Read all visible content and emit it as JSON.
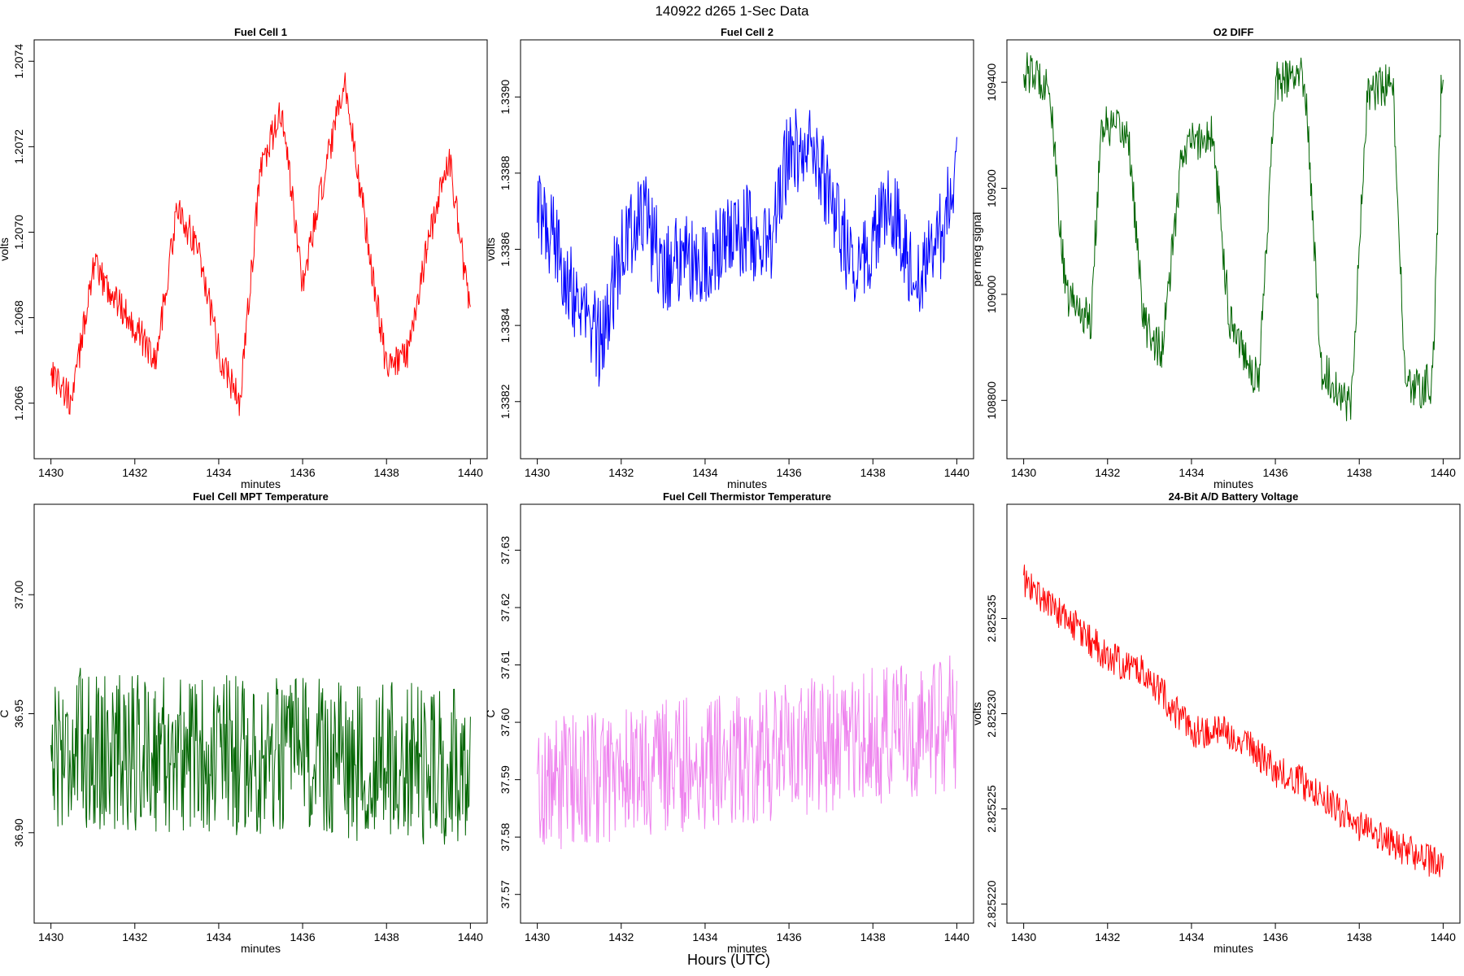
{
  "figure": {
    "title": "140922   d265   1-Sec Data",
    "xlabel": "Hours (UTC)"
  },
  "chart_data": [
    {
      "type": "line",
      "title": "Fuel Cell 1",
      "xlabel": "minutes",
      "ylabel": "volts",
      "color": "#ff0000",
      "xlim": [
        1429.6,
        1440.4
      ],
      "ylim": [
        1.20647,
        1.20745
      ],
      "xticks": [
        1430,
        1432,
        1434,
        1436,
        1438,
        1440
      ],
      "yticks": [
        1.2066,
        1.2068,
        1.207,
        1.2072,
        1.2074
      ],
      "ytick_labels": [
        "1.2066",
        "1.2068",
        "1.2070",
        "1.2072",
        "1.2074"
      ],
      "x": [
        1430.0,
        1430.5,
        1431.0,
        1431.5,
        1432.0,
        1432.5,
        1433.0,
        1433.5,
        1434.0,
        1434.5,
        1435.0,
        1435.5,
        1436.0,
        1436.5,
        1437.0,
        1437.5,
        1438.0,
        1438.5,
        1439.0,
        1439.5,
        1440.0
      ],
      "y": [
        1.20668,
        1.2066,
        1.20692,
        1.20685,
        1.20678,
        1.2067,
        1.20705,
        1.20697,
        1.20672,
        1.2066,
        1.20715,
        1.20728,
        1.20688,
        1.20712,
        1.20735,
        1.20702,
        1.20668,
        1.20672,
        1.20698,
        1.20718,
        1.2068
      ],
      "noise_amplitude": 4e-05,
      "samples": 600
    },
    {
      "type": "line",
      "title": "Fuel Cell 2",
      "xlabel": "minutes",
      "ylabel": "volts",
      "color": "#0000ff",
      "xlim": [
        1429.6,
        1440.4
      ],
      "ylim": [
        1.33805,
        1.33915
      ],
      "xticks": [
        1430,
        1432,
        1434,
        1436,
        1438,
        1440
      ],
      "yticks": [
        1.3382,
        1.3384,
        1.3386,
        1.3388,
        1.339
      ],
      "ytick_labels": [
        "1.3382",
        "1.3384",
        "1.3386",
        "1.3388",
        "1.3390"
      ],
      "x": [
        1430.0,
        1430.5,
        1431.0,
        1431.5,
        1432.0,
        1432.5,
        1433.0,
        1433.5,
        1434.0,
        1434.5,
        1435.0,
        1435.5,
        1436.0,
        1436.5,
        1437.0,
        1437.5,
        1438.0,
        1438.5,
        1439.0,
        1439.5,
        1440.0
      ],
      "y": [
        1.3387,
        1.3386,
        1.33845,
        1.33835,
        1.3386,
        1.3387,
        1.33855,
        1.33858,
        1.33855,
        1.33862,
        1.33865,
        1.3386,
        1.33885,
        1.33888,
        1.33875,
        1.33855,
        1.33862,
        1.33872,
        1.33852,
        1.33858,
        1.33882
      ],
      "noise_amplitude": 0.00012,
      "samples": 600
    },
    {
      "type": "line",
      "title": "O2 DIFF",
      "xlabel": "minutes",
      "ylabel": "per meg signal",
      "color": "#006400",
      "xlim": [
        1429.6,
        1440.4
      ],
      "ylim": [
        108690,
        109480
      ],
      "xticks": [
        1430,
        1432,
        1434,
        1436,
        1438,
        1440
      ],
      "yticks": [
        108800,
        109000,
        109200,
        109400
      ],
      "ytick_labels": [
        "108800",
        "109000",
        "109200",
        "109400"
      ],
      "x": [
        1430.0,
        1430.6,
        1431.0,
        1431.6,
        1431.85,
        1432.5,
        1432.85,
        1433.3,
        1433.8,
        1434.5,
        1434.9,
        1435.6,
        1436.0,
        1436.7,
        1437.1,
        1437.8,
        1438.2,
        1438.8,
        1439.1,
        1439.75,
        1439.95
      ],
      "y": [
        109420,
        109400,
        109000,
        108950,
        109320,
        109300,
        108950,
        108890,
        109280,
        109300,
        108960,
        108830,
        109400,
        109410,
        108860,
        108790,
        109380,
        109400,
        108820,
        108830,
        109380
      ],
      "noise_amplitude": 40,
      "samples": 600
    },
    {
      "type": "line",
      "title": "Fuel Cell MPT Temperature",
      "xlabel": "minutes",
      "ylabel": "C",
      "color": "#006400",
      "xlim": [
        1429.6,
        1440.4
      ],
      "ylim": [
        36.862,
        37.038
      ],
      "xticks": [
        1430,
        1432,
        1434,
        1436,
        1438,
        1440
      ],
      "yticks": [
        36.9,
        36.95,
        37.0
      ],
      "ytick_labels": [
        "36.90",
        "36.95",
        "37.00"
      ],
      "x": [
        1430.0,
        1435.0,
        1440.0
      ],
      "y": [
        36.936,
        36.932,
        36.928
      ],
      "noise_amplitude": 0.034,
      "samples": 600
    },
    {
      "type": "line",
      "title": "Fuel Cell Thermistor Temperature",
      "xlabel": "minutes",
      "ylabel": "C",
      "color": "#ee82ee",
      "xlim": [
        1429.6,
        1440.4
      ],
      "ylim": [
        37.565,
        37.638
      ],
      "xticks": [
        1430,
        1432,
        1434,
        1436,
        1438,
        1440
      ],
      "yticks": [
        37.57,
        37.58,
        37.59,
        37.6,
        37.61,
        37.62,
        37.63
      ],
      "ytick_labels": [
        "37.57",
        "37.58",
        "37.59",
        "37.60",
        "37.61",
        "37.62",
        "37.63"
      ],
      "x": [
        1430.0,
        1435.0,
        1440.0
      ],
      "y": [
        37.589,
        37.594,
        37.6
      ],
      "noise_amplitude": 0.012,
      "samples": 600
    },
    {
      "type": "line",
      "title": "24-Bit A/D Battery Voltage",
      "xlabel": "minutes",
      "ylabel": "volts",
      "color": "#ff0000",
      "xlim": [
        1429.6,
        1440.4
      ],
      "ylim": [
        2.825219,
        2.825241
      ],
      "xticks": [
        1430,
        1432,
        1434,
        1436,
        1438,
        1440
      ],
      "yticks": [
        2.82522,
        2.825225,
        2.82523,
        2.825235
      ],
      "ytick_labels": [
        "2.825220",
        "2.825225",
        "2.825230",
        "2.825235"
      ],
      "x": [
        1430.0,
        1431.0,
        1432.0,
        1433.0,
        1434.0,
        1435.0,
        1436.0,
        1437.0,
        1438.0,
        1439.0,
        1439.9
      ],
      "y": [
        2.825237,
        2.825235,
        2.825233,
        2.825232,
        2.825229,
        2.825229,
        2.825227,
        2.825226,
        2.825224,
        2.825223,
        2.825222
      ],
      "noise_amplitude": 9e-07,
      "samples": 600
    }
  ]
}
